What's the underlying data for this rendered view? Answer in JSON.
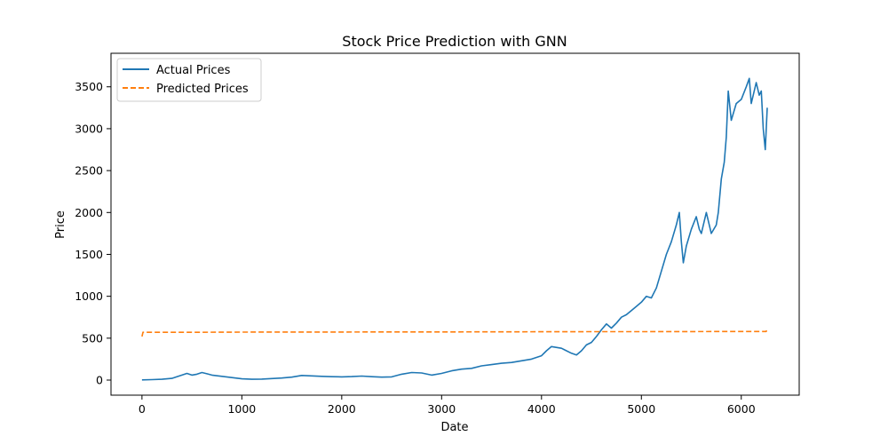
{
  "chart_data": {
    "type": "line",
    "title": "Stock Price Prediction with GNN",
    "xlabel": "Date",
    "ylabel": "Price",
    "xlim": [
      -310,
      6580
    ],
    "ylim": [
      -180,
      3900
    ],
    "xticks": [
      0,
      1000,
      2000,
      3000,
      4000,
      5000,
      6000
    ],
    "yticks": [
      0,
      500,
      1000,
      1500,
      2000,
      2500,
      3000,
      3500
    ],
    "grid": false,
    "legend_position": "upper-left",
    "series": [
      {
        "name": "Actual Prices",
        "color": "#1f77b4",
        "style": "solid",
        "x": [
          0,
          100,
          200,
          300,
          350,
          400,
          450,
          500,
          550,
          600,
          650,
          700,
          800,
          900,
          1000,
          1100,
          1200,
          1300,
          1400,
          1500,
          1600,
          1700,
          1800,
          1900,
          2000,
          2100,
          2200,
          2300,
          2400,
          2500,
          2600,
          2700,
          2800,
          2900,
          3000,
          3100,
          3200,
          3300,
          3400,
          3500,
          3600,
          3700,
          3800,
          3900,
          4000,
          4050,
          4100,
          4200,
          4300,
          4350,
          4400,
          4450,
          4500,
          4550,
          4600,
          4650,
          4700,
          4750,
          4800,
          4850,
          4900,
          4950,
          5000,
          5050,
          5100,
          5150,
          5200,
          5250,
          5300,
          5350,
          5380,
          5400,
          5420,
          5450,
          5500,
          5550,
          5580,
          5600,
          5650,
          5700,
          5750,
          5770,
          5800,
          5830,
          5850,
          5870,
          5900,
          5950,
          6000,
          6050,
          6080,
          6100,
          6150,
          6180,
          6200,
          6220,
          6240,
          6260
        ],
        "y": [
          2,
          5,
          10,
          20,
          40,
          60,
          80,
          60,
          70,
          90,
          75,
          60,
          45,
          30,
          15,
          10,
          12,
          18,
          25,
          35,
          55,
          50,
          45,
          40,
          38,
          42,
          48,
          40,
          35,
          38,
          70,
          90,
          85,
          60,
          80,
          110,
          130,
          140,
          170,
          185,
          200,
          210,
          230,
          250,
          290,
          350,
          400,
          380,
          320,
          300,
          350,
          420,
          450,
          520,
          600,
          670,
          620,
          680,
          750,
          780,
          830,
          880,
          930,
          1000,
          980,
          1100,
          1300,
          1500,
          1650,
          1850,
          2000,
          1650,
          1400,
          1600,
          1800,
          1950,
          1800,
          1750,
          2000,
          1750,
          1850,
          2000,
          2400,
          2600,
          2900,
          3450,
          3100,
          3300,
          3350,
          3500,
          3600,
          3300,
          3550,
          3400,
          3450,
          3000,
          2750,
          3250
        ]
      },
      {
        "name": "Predicted Prices",
        "color": "#ff7f0e",
        "style": "dashed",
        "x": [
          0,
          10,
          500,
          1000,
          1500,
          2000,
          2500,
          3000,
          3500,
          4000,
          4500,
          5000,
          5500,
          6000,
          6250,
          6260
        ],
        "y": [
          520,
          570,
          570,
          572,
          573,
          574,
          575,
          575,
          576,
          577,
          578,
          578,
          579,
          580,
          580,
          620
        ]
      }
    ]
  }
}
